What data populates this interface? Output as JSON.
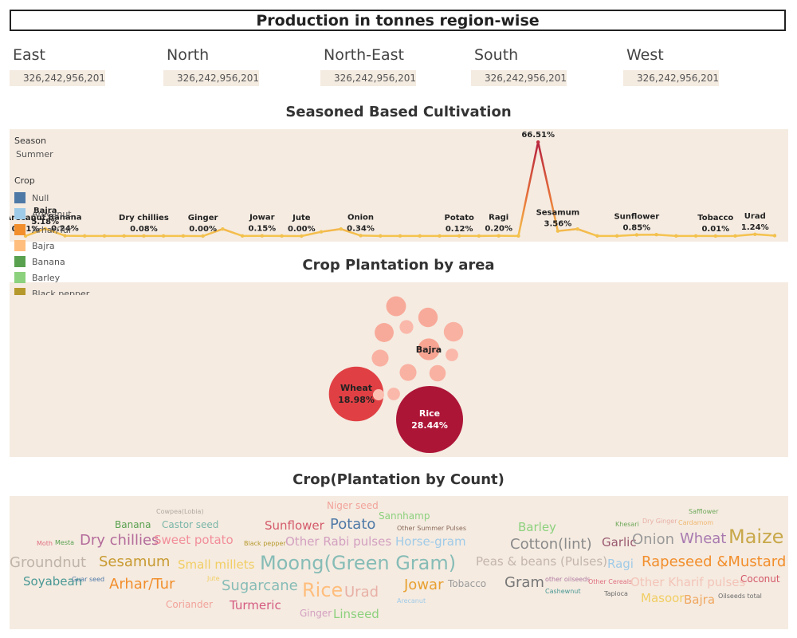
{
  "header": {
    "title": "Production in tonnes region-wise"
  },
  "regions": [
    {
      "name": "East",
      "value": "326,242,956,201"
    },
    {
      "name": "North",
      "value": "326,242,956,201"
    },
    {
      "name": "North-East",
      "value": "326,242,956,201"
    },
    {
      "name": "South",
      "value": "326,242,956,201"
    },
    {
      "name": "West",
      "value": "326,242,956,201"
    }
  ],
  "season_section": {
    "title": "Seasoned Based Cultivation",
    "legend": {
      "season_label": "Season",
      "season_value": "Summer",
      "crop_label": "Crop",
      "items": [
        {
          "name": "Null",
          "color": "#4e79a7"
        },
        {
          "name": "Arecanut",
          "color": "#a0cbe8"
        },
        {
          "name": "Arhar/Tur",
          "color": "#f28e2b"
        },
        {
          "name": "Bajra",
          "color": "#ffbe7d"
        },
        {
          "name": "Banana",
          "color": "#59a14f"
        },
        {
          "name": "Barley",
          "color": "#8cd17d"
        },
        {
          "name": "Black pepper",
          "color": "#b6992d"
        }
      ]
    }
  },
  "plantation_area": {
    "title": "Crop Plantation by area"
  },
  "plantation_count": {
    "title": "Crop(Plantation by Count)"
  },
  "chart_data": [
    {
      "type": "line",
      "title": "Seasoned Based Cultivation",
      "ylim": [
        0,
        70
      ],
      "points": [
        {
          "crop": "Arecanut",
          "value": 0.01,
          "label": "0.01%"
        },
        {
          "crop": "Bajra",
          "value": 5.18,
          "label": "5.18%"
        },
        {
          "crop": "Banana",
          "value": 0.24,
          "label": "0.24%"
        },
        {
          "crop": "",
          "value": 0.1,
          "label": ""
        },
        {
          "crop": "",
          "value": 0.1,
          "label": ""
        },
        {
          "crop": "",
          "value": 0.1,
          "label": ""
        },
        {
          "crop": "Dry chillies",
          "value": 0.08,
          "label": "0.08%"
        },
        {
          "crop": "",
          "value": 0.1,
          "label": ""
        },
        {
          "crop": "",
          "value": 0.1,
          "label": ""
        },
        {
          "crop": "Ginger",
          "value": 0.0,
          "label": "0.00%"
        },
        {
          "crop": "",
          "value": 5.0,
          "label": ""
        },
        {
          "crop": "",
          "value": 0.1,
          "label": ""
        },
        {
          "crop": "Jowar",
          "value": 0.15,
          "label": "0.15%"
        },
        {
          "crop": "",
          "value": 0.1,
          "label": ""
        },
        {
          "crop": "Jute",
          "value": 0.0,
          "label": "0.00%"
        },
        {
          "crop": "",
          "value": 3.0,
          "label": ""
        },
        {
          "crop": "",
          "value": 5.0,
          "label": ""
        },
        {
          "crop": "Onion",
          "value": 0.34,
          "label": "0.34%"
        },
        {
          "crop": "",
          "value": 0.1,
          "label": ""
        },
        {
          "crop": "",
          "value": 0.1,
          "label": ""
        },
        {
          "crop": "",
          "value": 0.1,
          "label": ""
        },
        {
          "crop": "",
          "value": 0.1,
          "label": ""
        },
        {
          "crop": "Potato",
          "value": 0.12,
          "label": "0.12%"
        },
        {
          "crop": "",
          "value": 0.1,
          "label": ""
        },
        {
          "crop": "Ragi",
          "value": 0.2,
          "label": "0.20%"
        },
        {
          "crop": "",
          "value": 0.1,
          "label": ""
        },
        {
          "crop": "Rice",
          "value": 66.51,
          "label": "66.51%"
        },
        {
          "crop": "Sesamum",
          "value": 3.56,
          "label": "3.56%"
        },
        {
          "crop": "",
          "value": 5.0,
          "label": ""
        },
        {
          "crop": "",
          "value": 0.1,
          "label": ""
        },
        {
          "crop": "",
          "value": 0.1,
          "label": ""
        },
        {
          "crop": "Sunflower",
          "value": 0.85,
          "label": "0.85%"
        },
        {
          "crop": "",
          "value": 1.0,
          "label": ""
        },
        {
          "crop": "",
          "value": 0.1,
          "label": ""
        },
        {
          "crop": "",
          "value": 0.1,
          "label": ""
        },
        {
          "crop": "Tobacco",
          "value": 0.01,
          "label": "0.01%"
        },
        {
          "crop": "",
          "value": 0.1,
          "label": ""
        },
        {
          "crop": "Urad",
          "value": 1.24,
          "label": "1.24%"
        },
        {
          "crop": "",
          "value": 0.3,
          "label": ""
        }
      ]
    },
    {
      "type": "bubble",
      "title": "Crop Plantation by area",
      "bubbles": [
        {
          "label": "Rice",
          "value": 28.44,
          "text": "28.44%",
          "color": "#ad1537",
          "text_color": "#ffffff"
        },
        {
          "label": "Wheat",
          "value": 18.98,
          "text": "18.98%",
          "color": "#e04044",
          "text_color": "#222222"
        },
        {
          "label": "Bajra",
          "value": 3.0,
          "text": "",
          "color": "#f8a493",
          "text_color": "#222222"
        },
        {
          "label": "",
          "value": 2.5,
          "color": "#f8aa9a"
        },
        {
          "label": "",
          "value": 2.4,
          "color": "#f8aa9a"
        },
        {
          "label": "",
          "value": 2.4,
          "color": "#f9b1a2"
        },
        {
          "label": "",
          "value": 2.3,
          "color": "#f8aa9a"
        },
        {
          "label": "",
          "value": 1.8,
          "color": "#f9b1a2"
        },
        {
          "label": "",
          "value": 1.8,
          "color": "#f9b1a2"
        },
        {
          "label": "",
          "value": 1.7,
          "color": "#f9b1a2"
        },
        {
          "label": "",
          "value": 1.2,
          "color": "#fab8aa"
        },
        {
          "label": "",
          "value": 1.0,
          "color": "#fab8aa"
        },
        {
          "label": "",
          "value": 1.0,
          "color": "#fab8aa"
        },
        {
          "label": "",
          "value": 0.8,
          "color": "#fbbfb2"
        }
      ]
    },
    {
      "type": "wordcloud",
      "title": "Crop(Plantation by Count)",
      "words": [
        {
          "text": "Cowpea(Lobia)",
          "color": "#b0a8a0",
          "weight": 1
        },
        {
          "text": "Niger seed",
          "color": "#f2a39a",
          "weight": 2
        },
        {
          "text": "Safflower",
          "color": "#6fa85a",
          "weight": 1
        },
        {
          "text": "Banana",
          "color": "#59a14f",
          "weight": 2
        },
        {
          "text": "Castor seed",
          "color": "#7ab6a8",
          "weight": 2
        },
        {
          "text": "Sannhamp",
          "color": "#8cd17d",
          "weight": 2
        },
        {
          "text": "Sunflower",
          "color": "#d45a6a",
          "weight": 3
        },
        {
          "text": "Potato",
          "color": "#4e79a7",
          "weight": 4
        },
        {
          "text": "Other Summer Pulses",
          "color": "#8a6a5a",
          "weight": 1
        },
        {
          "text": "Barley",
          "color": "#8cd17d",
          "weight": 3
        },
        {
          "text": "Khesari",
          "color": "#6fa85a",
          "weight": 1
        },
        {
          "text": "Dry Ginger",
          "color": "#e8b0a6",
          "weight": 1
        },
        {
          "text": "Cardamom",
          "color": "#f0b870",
          "weight": 1
        },
        {
          "text": "Moth",
          "color": "#e07080",
          "weight": 1
        },
        {
          "text": "Mesta",
          "color": "#59a14f",
          "weight": 1
        },
        {
          "text": "Dry chillies",
          "color": "#b36a9a",
          "weight": 4
        },
        {
          "text": "Sweet potato",
          "color": "#f28e9a",
          "weight": 3
        },
        {
          "text": "Black pepper",
          "color": "#b6992d",
          "weight": 1
        },
        {
          "text": "Other Rabi pulses",
          "color": "#d3a0c0",
          "weight": 3
        },
        {
          "text": "Horse-gram",
          "color": "#a0cbe8",
          "weight": 3
        },
        {
          "text": "Cotton(lint)",
          "color": "#8a8a8a",
          "weight": 4
        },
        {
          "text": "Garlic",
          "color": "#9a5a70",
          "weight": 3
        },
        {
          "text": "Onion",
          "color": "#9a9a9a",
          "weight": 4
        },
        {
          "text": "Wheat",
          "color": "#a87ab0",
          "weight": 4
        },
        {
          "text": "Maize",
          "color": "#c8a84a",
          "weight": 5
        },
        {
          "text": "Groundnut",
          "color": "#c0b4a8",
          "weight": 4
        },
        {
          "text": "Sesamum",
          "color": "#c89a30",
          "weight": 4
        },
        {
          "text": "Small millets",
          "color": "#f1ce63",
          "weight": 3
        },
        {
          "text": "Moong(Green Gram)",
          "color": "#86bcb6",
          "weight": 5
        },
        {
          "text": "Peas & beans (Pulses)",
          "color": "#c4b6ac",
          "weight": 3
        },
        {
          "text": "Ragi",
          "color": "#a0cbe8",
          "weight": 3
        },
        {
          "text": "Rapeseed &Mustard",
          "color": "#f28e2b",
          "weight": 4
        },
        {
          "text": "Soyabean",
          "color": "#499894",
          "weight": 3
        },
        {
          "text": "Guar seed",
          "color": "#4e79a7",
          "weight": 1
        },
        {
          "text": "Arhar/Tur",
          "color": "#f28e2b",
          "weight": 4
        },
        {
          "text": "Jute",
          "color": "#f1ce63",
          "weight": 1
        },
        {
          "text": "Sugarcane",
          "color": "#86bcb6",
          "weight": 4
        },
        {
          "text": "Rice",
          "color": "#ffbe7d",
          "weight": 5
        },
        {
          "text": "Urad",
          "color": "#e8b0a6",
          "weight": 4
        },
        {
          "text": "Jowar",
          "color": "#e8a030",
          "weight": 4
        },
        {
          "text": "Tobacco",
          "color": "#9a9a9a",
          "weight": 2
        },
        {
          "text": "Gram",
          "color": "#777777",
          "weight": 4
        },
        {
          "text": "other oilseeds",
          "color": "#b07aa1",
          "weight": 1
        },
        {
          "text": "Other Cereals",
          "color": "#e07080",
          "weight": 1
        },
        {
          "text": "Other Kharif pulses",
          "color": "#f4c4b8",
          "weight": 3
        },
        {
          "text": "Coconut",
          "color": "#d45a6a",
          "weight": 2
        },
        {
          "text": "Cashewnut",
          "color": "#499894",
          "weight": 1
        },
        {
          "text": "Tapioca",
          "color": "#6a6a6a",
          "weight": 1
        },
        {
          "text": "Masoor",
          "color": "#f1ce63",
          "weight": 3
        },
        {
          "text": "Bajra",
          "color": "#f0a860",
          "weight": 3
        },
        {
          "text": "Oilseeds total",
          "color": "#6a6a6a",
          "weight": 1
        },
        {
          "text": "Arecanut",
          "color": "#a0cbe8",
          "weight": 1
        },
        {
          "text": "Coriander",
          "color": "#f2a39a",
          "weight": 2
        },
        {
          "text": "Turmeric",
          "color": "#d45a80",
          "weight": 3
        },
        {
          "text": "Ginger",
          "color": "#d3a0c0",
          "weight": 2
        },
        {
          "text": "Linseed",
          "color": "#8cd17d",
          "weight": 3
        }
      ]
    }
  ]
}
